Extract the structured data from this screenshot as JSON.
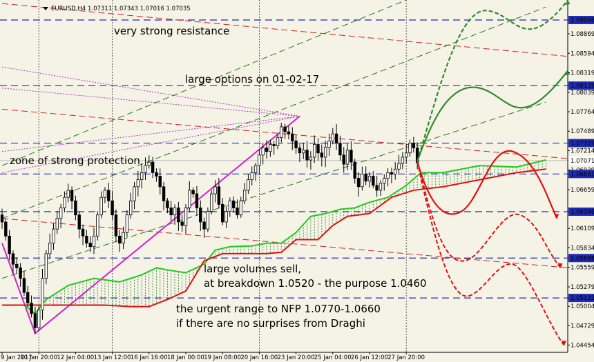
{
  "header": {
    "symbol": "EURUSD,H4",
    "ohlc": "1.07311 1.07343 1.07016 1.07035"
  },
  "chart_data": {
    "type": "candlestick",
    "colors": {
      "background": "#f5f2e6",
      "candle": "#000000",
      "level_line": "#1f2bb0",
      "channel_green": "#1a7a1a",
      "channel_red": "#cc2222",
      "pitchfork_purple": "#a020c0",
      "magenta_trend": "#d020d0",
      "cloud_green": "#22cc22",
      "cloud_red": "#dd1111",
      "forecast_green": "#2d8a2d",
      "forecast_red": "#dd1111",
      "price_highlight": "#1f2bb0"
    },
    "ylim": [
      1.0435,
      1.0935
    ],
    "price_levels": [
      {
        "value": 1.09066,
        "label": "1.09066",
        "highlight": true
      },
      {
        "value": 1.08869,
        "label": "1.08869"
      },
      {
        "value": 1.08594,
        "label": "1.08594"
      },
      {
        "value": 1.08319,
        "label": "1.08319"
      },
      {
        "value": 1.08135,
        "label": "1.08135",
        "highlight": true
      },
      {
        "value": 1.08039,
        "label": "1.08039"
      },
      {
        "value": 1.07764,
        "label": "1.07764"
      },
      {
        "value": 1.07489,
        "label": "1.07489"
      },
      {
        "value": 1.07319,
        "label": "1.07319",
        "highlight": true
      },
      {
        "value": 1.07214,
        "label": "1.07214"
      },
      {
        "value": 1.07071,
        "label": "1.07071",
        "highlight": true,
        "current": true
      },
      {
        "value": 1.06939,
        "label": "1.06939"
      },
      {
        "value": 1.06881,
        "label": "1.06881",
        "highlight": true
      },
      {
        "value": 1.06659,
        "label": "1.06659"
      },
      {
        "value": 1.06346,
        "label": "1.06346",
        "highlight": true
      },
      {
        "value": 1.06109,
        "label": "1.06109"
      },
      {
        "value": 1.05834,
        "label": "1.05834"
      },
      {
        "value": 1.05688,
        "label": "1.05688",
        "highlight": true
      },
      {
        "value": 1.05559,
        "label": "1.05559"
      },
      {
        "value": 1.05279,
        "label": "1.05279"
      },
      {
        "value": 1.05122,
        "label": "1.05122",
        "highlight": true
      },
      {
        "value": 1.05004,
        "label": "1.05004"
      },
      {
        "value": 1.04729,
        "label": "1.04729"
      },
      {
        "value": 1.04454,
        "label": "1.04454"
      }
    ],
    "dashed_levels": [
      1.09066,
      1.08135,
      1.07319,
      1.06881,
      1.06346,
      1.05688,
      1.05122
    ],
    "x_ticks": [
      {
        "label": "9 Jan 2017",
        "bar": 0
      },
      {
        "label": "10 Jan 20:00",
        "bar": 10
      },
      {
        "label": "12 Jan 04:00",
        "bar": 20
      },
      {
        "label": "13 Jan 12:00",
        "bar": 30
      },
      {
        "label": "16 Jan 16:00",
        "bar": 40
      },
      {
        "label": "18 Jan 00:00",
        "bar": 50
      },
      {
        "label": "19 Jan 08:00",
        "bar": 60
      },
      {
        "label": "20 Jan 16:00",
        "bar": 70
      },
      {
        "label": "23 Jan 20:00",
        "bar": 80
      },
      {
        "label": "25 Jan 04:00",
        "bar": 90
      },
      {
        "label": "26 Jan 12:00",
        "bar": 100
      },
      {
        "label": "27 Jan 20:00",
        "bar": 110
      }
    ],
    "vertical_separators": [
      10,
      30,
      70,
      110
    ],
    "close": [
      1.062,
      1.06,
      1.0575,
      1.056,
      1.0555,
      1.054,
      1.052,
      1.0505,
      1.049,
      1.047,
      1.0495,
      1.054,
      1.0575,
      1.059,
      1.061,
      1.0625,
      1.064,
      1.0655,
      1.0665,
      1.065,
      1.063,
      1.061,
      1.06,
      1.059,
      1.0585,
      1.06,
      1.063,
      1.0655,
      1.0665,
      1.065,
      1.063,
      1.06,
      1.059,
      1.0605,
      1.063,
      1.065,
      1.067,
      1.068,
      1.069,
      1.07,
      1.0705,
      1.069,
      1.0685,
      1.067,
      1.065,
      1.064,
      1.063,
      1.064,
      1.062,
      1.0615,
      1.064,
      1.0665,
      1.066,
      1.064,
      1.062,
      1.061,
      1.0635,
      1.066,
      1.067,
      1.0645,
      1.062,
      1.0635,
      1.065,
      1.064,
      1.063,
      1.065,
      1.0665,
      1.068,
      1.069,
      1.07,
      1.0715,
      1.0725,
      1.072,
      1.073,
      1.0728,
      1.074,
      1.0755,
      1.0748,
      1.0745,
      1.0735,
      1.0725,
      1.0718,
      1.0722,
      1.0708,
      1.0712,
      1.073,
      1.0718,
      1.0712,
      1.0726,
      1.0735,
      1.0745,
      1.0732,
      1.0715,
      1.0702,
      1.0722,
      1.0705,
      1.0682,
      1.067,
      1.0688,
      1.0678,
      1.0685,
      1.0672,
      1.0665,
      1.0675,
      1.0682,
      1.069,
      1.0688,
      1.0695,
      1.0703,
      1.0712,
      1.0718,
      1.0732,
      1.0725,
      1.0704
    ],
    "annotations": [
      {
        "key": "resistance"
      },
      {
        "key": "options"
      },
      {
        "key": "protection"
      },
      {
        "key": "volumes1"
      },
      {
        "key": "volumes2"
      },
      {
        "key": "urgent1"
      },
      {
        "key": "urgent2"
      }
    ]
  },
  "labels": {
    "resistance": "very strong resistance",
    "options": "large options on 01-02-17",
    "protection": "zone of strong protection",
    "volumes1": "large volumes sell,",
    "volumes2": "at breakdown 1.0520 - the purpose 1.0460",
    "urgent1": "the urgent range to NFP 1.0770-1.0660",
    "urgent2": "if there are no surprises from Draghi"
  }
}
